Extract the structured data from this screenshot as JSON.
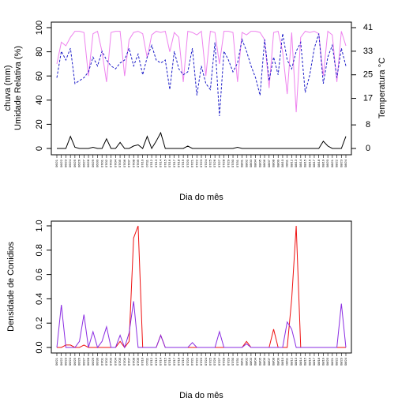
{
  "chart_data": [
    {
      "type": "line",
      "xlabel": "Dia do mês",
      "ylabel": "chuva (mm)",
      "ylabel2": "Umidade Relativa (%)",
      "y2label": "Temperatura °C",
      "categories": [
        "06/21",
        "06/22",
        "06/23",
        "06/24",
        "06/25",
        "06/26",
        "06/27",
        "06/28",
        "06/29",
        "06/30",
        "07/01",
        "07/02",
        "07/03",
        "07/04",
        "07/05",
        "07/06",
        "07/07",
        "07/08",
        "07/09",
        "07/10",
        "07/11",
        "07/12",
        "07/13",
        "07/14",
        "07/15",
        "07/16",
        "07/17",
        "07/18",
        "07/19",
        "07/20",
        "07/21",
        "07/22",
        "07/23",
        "07/24",
        "07/25",
        "07/26",
        "07/27",
        "07/28",
        "07/29",
        "07/30",
        "07/31",
        "08/01",
        "08/02",
        "08/03",
        "08/04",
        "08/05",
        "08/06",
        "08/07",
        "08/08",
        "08/09",
        "08/10",
        "08/11",
        "08/12",
        "08/13",
        "08/14",
        "08/15",
        "08/16",
        "08/17",
        "08/18",
        "08/19",
        "08/20",
        "08/21",
        "08/22",
        "08/23",
        "08/24"
      ],
      "ylim": [
        0,
        100
      ],
      "yticks": [
        0,
        20,
        40,
        60,
        80,
        100
      ],
      "y2lim": [
        0,
        41
      ],
      "y2ticks": [
        0,
        8,
        17,
        25,
        33,
        41
      ],
      "series": [
        {
          "color": "#ee82ee",
          "dash": false,
          "values": [
            70,
            88,
            85,
            92,
            97,
            97,
            96,
            60,
            95,
            97,
            80,
            55,
            96,
            97,
            97,
            60,
            90,
            96,
            97,
            95,
            75,
            94,
            97,
            96,
            97,
            80,
            96,
            92,
            55,
            97,
            96,
            94,
            97,
            60,
            97,
            96,
            70,
            97,
            97,
            96,
            55,
            96,
            94,
            97,
            97,
            96,
            90,
            50,
            96,
            97,
            80,
            45,
            96,
            30,
            92,
            97,
            96,
            97,
            95,
            60,
            97,
            94,
            55,
            97,
            85
          ]
        },
        {
          "color": "#1c1cc8",
          "dash": true,
          "axis": "y2",
          "values": [
            24,
            33,
            30,
            34,
            22,
            23,
            24,
            26,
            31,
            28,
            33,
            30,
            28,
            27,
            29,
            30,
            34,
            28,
            32,
            25,
            31,
            35,
            30,
            29,
            30,
            20,
            33,
            27,
            25,
            26,
            34,
            18,
            28,
            22,
            20,
            36,
            11,
            33,
            30,
            26,
            29,
            37,
            33,
            28,
            24,
            18,
            37,
            23,
            31,
            25,
            39,
            30,
            27,
            33,
            36,
            19,
            25,
            34,
            39,
            22,
            31,
            35,
            24,
            34,
            28
          ]
        },
        {
          "color": "#000000",
          "dash": false,
          "values": [
            0,
            0,
            0,
            10,
            1,
            0,
            0,
            0,
            1,
            0,
            0,
            8,
            0,
            0,
            5,
            0,
            0,
            2,
            3,
            0,
            10,
            0,
            6,
            13,
            0,
            0,
            0,
            0,
            0,
            2,
            0,
            0,
            0,
            0,
            0,
            0,
            0,
            0,
            0,
            0,
            1,
            0,
            0,
            0,
            0,
            0,
            0,
            0,
            0,
            0,
            0,
            0,
            0,
            0,
            0,
            0,
            0,
            0,
            0,
            6,
            2,
            0,
            0,
            0,
            10
          ]
        }
      ]
    },
    {
      "type": "line",
      "xlabel": "Dia do mês",
      "ylabel": "Densidade de Conidios",
      "categories": [
        "06/21",
        "06/22",
        "06/23",
        "06/24",
        "06/25",
        "06/26",
        "06/27",
        "06/28",
        "06/29",
        "06/30",
        "07/01",
        "07/02",
        "07/03",
        "07/04",
        "07/05",
        "07/06",
        "07/07",
        "07/08",
        "07/09",
        "07/10",
        "07/11",
        "07/12",
        "07/13",
        "07/14",
        "07/15",
        "07/16",
        "07/17",
        "07/18",
        "07/19",
        "07/20",
        "07/21",
        "07/22",
        "07/23",
        "07/24",
        "07/25",
        "07/26",
        "07/27",
        "07/28",
        "07/29",
        "07/30",
        "07/31",
        "08/01",
        "08/02",
        "08/03",
        "08/04",
        "08/05",
        "08/06",
        "08/07",
        "08/08",
        "08/09",
        "08/10",
        "08/11",
        "08/12",
        "08/13",
        "08/14",
        "08/15",
        "08/16",
        "08/17",
        "08/18",
        "08/19",
        "08/20",
        "08/21",
        "08/22",
        "08/23",
        "08/24"
      ],
      "ylim": [
        0,
        1
      ],
      "yticks": [
        {
          "value": 0,
          "label": "0.0"
        },
        0.2,
        0.4,
        0.6,
        0.8,
        {
          "value": 1,
          "label": "1.0"
        }
      ],
      "series": [
        {
          "color": "#ee1111",
          "dash": false,
          "values": [
            0,
            0,
            0.02,
            0.02,
            0,
            0,
            0.02,
            0,
            0,
            0,
            0,
            0,
            0,
            0,
            0.05,
            0,
            0.05,
            0.9,
            1.0,
            0,
            0,
            0,
            0,
            0.1,
            0,
            0,
            0,
            0,
            0,
            0,
            0,
            0,
            0,
            0,
            0,
            0,
            0,
            0,
            0,
            0,
            0,
            0,
            0.05,
            0,
            0,
            0,
            0,
            0,
            0.15,
            0,
            0,
            0,
            0.4,
            1.0,
            0,
            0,
            0,
            0,
            0,
            0,
            0,
            0,
            0,
            0,
            0
          ]
        },
        {
          "color": "#8a2be2",
          "dash": false,
          "values": [
            0,
            0.35,
            0,
            0,
            0,
            0.05,
            0.27,
            0,
            0.13,
            0,
            0.05,
            0.17,
            0,
            0,
            0.1,
            0,
            0.12,
            0.38,
            0,
            0,
            0,
            0,
            0,
            0.1,
            0,
            0,
            0,
            0,
            0,
            0,
            0.04,
            0,
            0,
            0,
            0,
            0,
            0.13,
            0,
            0,
            0,
            0,
            0,
            0.03,
            0,
            0,
            0,
            0,
            0,
            0,
            0,
            0,
            0.21,
            0.15,
            0,
            0,
            0,
            0,
            0,
            0,
            0,
            0,
            0,
            0,
            0.36,
            0
          ]
        }
      ]
    }
  ]
}
